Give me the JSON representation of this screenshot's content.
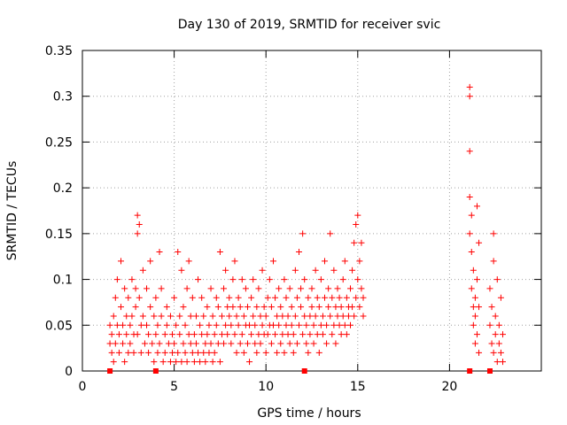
{
  "chart_data": {
    "type": "scatter",
    "title": "Day 130 of 2019, SRMTID for receiver svic",
    "xlabel": "GPS time / hours",
    "ylabel": "SRMTID / TECUs",
    "xlim": [
      0,
      25
    ],
    "ylim": [
      0,
      0.35
    ],
    "xticks": [
      0,
      5,
      10,
      15,
      20
    ],
    "xtick_labels": [
      "0",
      "5",
      "10",
      "15",
      "20"
    ],
    "yticks": [
      0,
      0.05,
      0.1,
      0.15,
      0.2,
      0.25,
      0.3,
      0.35
    ],
    "ytick_labels": [
      "0",
      "0.05",
      "0.1",
      "0.15",
      "0.2",
      "0.25",
      "0.3",
      "0.35"
    ],
    "grid": true,
    "marker": "plus",
    "color": "#ff0000",
    "series": [
      {
        "name": "SRMTID",
        "points": [
          [
            1.5,
            0.03
          ],
          [
            1.5,
            0.05
          ],
          [
            1.6,
            0.02
          ],
          [
            1.6,
            0.04
          ],
          [
            1.7,
            0.06
          ],
          [
            1.7,
            0.01
          ],
          [
            1.8,
            0.08
          ],
          [
            1.8,
            0.03
          ],
          [
            1.9,
            0.05
          ],
          [
            1.9,
            0.1
          ],
          [
            2.0,
            0.04
          ],
          [
            2.0,
            0.02
          ],
          [
            2.1,
            0.07
          ],
          [
            2.1,
            0.12
          ],
          [
            2.2,
            0.03
          ],
          [
            2.2,
            0.05
          ],
          [
            2.3,
            0.09
          ],
          [
            2.3,
            0.01
          ],
          [
            2.4,
            0.06
          ],
          [
            2.4,
            0.04
          ],
          [
            2.5,
            0.02
          ],
          [
            2.5,
            0.08
          ],
          [
            2.6,
            0.05
          ],
          [
            2.6,
            0.03
          ],
          [
            2.7,
            0.1
          ],
          [
            2.7,
            0.06
          ],
          [
            2.8,
            0.04
          ],
          [
            2.8,
            0.02
          ],
          [
            2.9,
            0.07
          ],
          [
            2.9,
            0.09
          ],
          [
            3.0,
            0.17
          ],
          [
            3.0,
            0.15
          ],
          [
            3.0,
            0.04
          ],
          [
            3.1,
            0.16
          ],
          [
            3.1,
            0.08
          ],
          [
            3.2,
            0.05
          ],
          [
            3.2,
            0.02
          ],
          [
            3.3,
            0.06
          ],
          [
            3.3,
            0.11
          ],
          [
            3.4,
            0.03
          ],
          [
            3.5,
            0.05
          ],
          [
            3.5,
            0.09
          ],
          [
            3.6,
            0.02
          ],
          [
            3.6,
            0.04
          ],
          [
            3.7,
            0.07
          ],
          [
            3.7,
            0.12
          ],
          [
            3.8,
            0.03
          ],
          [
            3.9,
            0.06
          ],
          [
            3.9,
            0.01
          ],
          [
            4.0,
            0.04
          ],
          [
            4.0,
            0.08
          ],
          [
            4.1,
            0.02
          ],
          [
            4.1,
            0.05
          ],
          [
            4.2,
            0.13
          ],
          [
            4.2,
            0.03
          ],
          [
            4.3,
            0.06
          ],
          [
            4.3,
            0.09
          ],
          [
            4.4,
            0.01
          ],
          [
            4.5,
            0.04
          ],
          [
            4.5,
            0.02
          ],
          [
            4.6,
            0.07
          ],
          [
            4.6,
            0.05
          ],
          [
            4.7,
            0.03
          ],
          [
            4.8,
            0.06
          ],
          [
            4.8,
            0.01
          ],
          [
            4.9,
            0.02
          ],
          [
            4.9,
            0.04
          ],
          [
            5.0,
            0.03
          ],
          [
            5.0,
            0.08
          ],
          [
            5.1,
            0.01
          ],
          [
            5.1,
            0.05
          ],
          [
            5.2,
            0.13
          ],
          [
            5.2,
            0.02
          ],
          [
            5.3,
            0.06
          ],
          [
            5.3,
            0.04
          ],
          [
            5.4,
            0.11
          ],
          [
            5.4,
            0.01
          ],
          [
            5.5,
            0.03
          ],
          [
            5.5,
            0.07
          ],
          [
            5.6,
            0.02
          ],
          [
            5.6,
            0.05
          ],
          [
            5.7,
            0.09
          ],
          [
            5.7,
            0.01
          ],
          [
            5.8,
            0.04
          ],
          [
            5.8,
            0.12
          ],
          [
            5.9,
            0.03
          ],
          [
            5.9,
            0.06
          ],
          [
            6.0,
            0.02
          ],
          [
            6.0,
            0.08
          ],
          [
            6.1,
            0.01
          ],
          [
            6.1,
            0.04
          ],
          [
            6.2,
            0.06
          ],
          [
            6.2,
            0.03
          ],
          [
            6.3,
            0.1
          ],
          [
            6.3,
            0.02
          ],
          [
            6.4,
            0.05
          ],
          [
            6.4,
            0.01
          ],
          [
            6.5,
            0.04
          ],
          [
            6.5,
            0.08
          ],
          [
            6.6,
            0.02
          ],
          [
            6.6,
            0.06
          ],
          [
            6.7,
            0.03
          ],
          [
            6.7,
            0.01
          ],
          [
            6.8,
            0.07
          ],
          [
            6.8,
            0.04
          ],
          [
            6.9,
            0.02
          ],
          [
            6.9,
            0.05
          ],
          [
            7.0,
            0.09
          ],
          [
            7.0,
            0.03
          ],
          [
            7.1,
            0.01
          ],
          [
            7.1,
            0.06
          ],
          [
            7.2,
            0.04
          ],
          [
            7.2,
            0.02
          ],
          [
            7.3,
            0.08
          ],
          [
            7.3,
            0.05
          ],
          [
            7.4,
            0.03
          ],
          [
            7.4,
            0.07
          ],
          [
            7.5,
            0.01
          ],
          [
            7.5,
            0.13
          ],
          [
            7.6,
            0.04
          ],
          [
            7.6,
            0.06
          ],
          [
            7.7,
            0.09
          ],
          [
            7.7,
            0.03
          ],
          [
            7.8,
            0.05
          ],
          [
            7.8,
            0.11
          ],
          [
            7.9,
            0.07
          ],
          [
            7.9,
            0.04
          ],
          [
            8.0,
            0.06
          ],
          [
            8.0,
            0.08
          ],
          [
            8.1,
            0.03
          ],
          [
            8.1,
            0.05
          ],
          [
            8.2,
            0.1
          ],
          [
            8.2,
            0.07
          ],
          [
            8.3,
            0.04
          ],
          [
            8.3,
            0.12
          ],
          [
            8.4,
            0.06
          ],
          [
            8.4,
            0.02
          ],
          [
            8.5,
            0.05
          ],
          [
            8.5,
            0.08
          ],
          [
            8.6,
            0.03
          ],
          [
            8.6,
            0.07
          ],
          [
            8.7,
            0.04
          ],
          [
            8.7,
            0.1
          ],
          [
            8.8,
            0.06
          ],
          [
            8.8,
            0.02
          ],
          [
            8.9,
            0.05
          ],
          [
            8.9,
            0.09
          ],
          [
            9.0,
            0.03
          ],
          [
            9.0,
            0.07
          ],
          [
            9.1,
            0.05
          ],
          [
            9.1,
            0.01
          ],
          [
            9.2,
            0.08
          ],
          [
            9.2,
            0.04
          ],
          [
            9.3,
            0.06
          ],
          [
            9.3,
            0.1
          ],
          [
            9.4,
            0.03
          ],
          [
            9.4,
            0.05
          ],
          [
            9.5,
            0.07
          ],
          [
            9.5,
            0.02
          ],
          [
            9.6,
            0.04
          ],
          [
            9.6,
            0.09
          ],
          [
            9.7,
            0.06
          ],
          [
            9.7,
            0.03
          ],
          [
            9.8,
            0.05
          ],
          [
            9.8,
            0.11
          ],
          [
            9.9,
            0.04
          ],
          [
            9.9,
            0.07
          ],
          [
            10.0,
            0.02
          ],
          [
            10.0,
            0.06
          ],
          [
            10.1,
            0.08
          ],
          [
            10.1,
            0.04
          ],
          [
            10.2,
            0.05
          ],
          [
            10.2,
            0.1
          ],
          [
            10.3,
            0.03
          ],
          [
            10.3,
            0.07
          ],
          [
            10.4,
            0.12
          ],
          [
            10.4,
            0.05
          ],
          [
            10.5,
            0.04
          ],
          [
            10.5,
            0.08
          ],
          [
            10.6,
            0.06
          ],
          [
            10.6,
            0.02
          ],
          [
            10.7,
            0.05
          ],
          [
            10.7,
            0.09
          ],
          [
            10.8,
            0.03
          ],
          [
            10.8,
            0.07
          ],
          [
            10.9,
            0.04
          ],
          [
            10.9,
            0.06
          ],
          [
            11.0,
            0.1
          ],
          [
            11.0,
            0.02
          ],
          [
            11.1,
            0.05
          ],
          [
            11.1,
            0.08
          ],
          [
            11.2,
            0.04
          ],
          [
            11.2,
            0.06
          ],
          [
            11.3,
            0.03
          ],
          [
            11.3,
            0.09
          ],
          [
            11.4,
            0.05
          ],
          [
            11.4,
            0.07
          ],
          [
            11.5,
            0.02
          ],
          [
            11.5,
            0.04
          ],
          [
            11.6,
            0.06
          ],
          [
            11.6,
            0.11
          ],
          [
            11.7,
            0.08
          ],
          [
            11.7,
            0.03
          ],
          [
            11.8,
            0.13
          ],
          [
            11.8,
            0.05
          ],
          [
            11.9,
            0.09
          ],
          [
            11.9,
            0.07
          ],
          [
            12.0,
            0.15
          ],
          [
            12.0,
            0.04
          ],
          [
            12.1,
            0.06
          ],
          [
            12.1,
            0.1
          ],
          [
            12.2,
            0.03
          ],
          [
            12.2,
            0.05
          ],
          [
            12.3,
            0.08
          ],
          [
            12.3,
            0.02
          ],
          [
            12.4,
            0.06
          ],
          [
            12.4,
            0.04
          ],
          [
            12.5,
            0.07
          ],
          [
            12.5,
            0.09
          ],
          [
            12.6,
            0.05
          ],
          [
            12.6,
            0.03
          ],
          [
            12.7,
            0.11
          ],
          [
            12.7,
            0.06
          ],
          [
            12.8,
            0.04
          ],
          [
            12.8,
            0.08
          ],
          [
            12.9,
            0.07
          ],
          [
            12.9,
            0.02
          ],
          [
            13.0,
            0.05
          ],
          [
            13.0,
            0.1
          ],
          [
            13.1,
            0.06
          ],
          [
            13.1,
            0.04
          ],
          [
            13.2,
            0.08
          ],
          [
            13.2,
            0.12
          ],
          [
            13.3,
            0.05
          ],
          [
            13.3,
            0.03
          ],
          [
            13.4,
            0.07
          ],
          [
            13.4,
            0.09
          ],
          [
            13.5,
            0.06
          ],
          [
            13.5,
            0.15
          ],
          [
            13.6,
            0.04
          ],
          [
            13.6,
            0.08
          ],
          [
            13.7,
            0.05
          ],
          [
            13.7,
            0.11
          ],
          [
            13.8,
            0.07
          ],
          [
            13.8,
            0.03
          ],
          [
            13.9,
            0.06
          ],
          [
            13.9,
            0.09
          ],
          [
            14.0,
            0.05
          ],
          [
            14.0,
            0.08
          ],
          [
            14.1,
            0.04
          ],
          [
            14.1,
            0.07
          ],
          [
            14.2,
            0.1
          ],
          [
            14.2,
            0.06
          ],
          [
            14.3,
            0.05
          ],
          [
            14.3,
            0.12
          ],
          [
            14.4,
            0.08
          ],
          [
            14.4,
            0.04
          ],
          [
            14.5,
            0.07
          ],
          [
            14.5,
            0.06
          ],
          [
            14.6,
            0.09
          ],
          [
            14.6,
            0.05
          ],
          [
            14.7,
            0.11
          ],
          [
            14.7,
            0.07
          ],
          [
            14.8,
            0.14
          ],
          [
            14.8,
            0.06
          ],
          [
            14.9,
            0.08
          ],
          [
            14.9,
            0.16
          ],
          [
            15.0,
            0.17
          ],
          [
            15.0,
            0.1
          ],
          [
            15.1,
            0.07
          ],
          [
            15.1,
            0.12
          ],
          [
            15.2,
            0.09
          ],
          [
            15.2,
            0.14
          ],
          [
            15.3,
            0.06
          ],
          [
            15.3,
            0.08
          ],
          [
            21.1,
            0.31
          ],
          [
            21.1,
            0.3
          ],
          [
            21.1,
            0.24
          ],
          [
            21.1,
            0.19
          ],
          [
            21.1,
            0.15
          ],
          [
            21.2,
            0.17
          ],
          [
            21.2,
            0.13
          ],
          [
            21.2,
            0.09
          ],
          [
            21.3,
            0.11
          ],
          [
            21.3,
            0.07
          ],
          [
            21.3,
            0.05
          ],
          [
            21.4,
            0.08
          ],
          [
            21.4,
            0.03
          ],
          [
            21.4,
            0.06
          ],
          [
            21.5,
            0.1
          ],
          [
            21.5,
            0.04
          ],
          [
            21.5,
            0.18
          ],
          [
            21.6,
            0.14
          ],
          [
            21.6,
            0.02
          ],
          [
            21.6,
            0.07
          ],
          [
            22.2,
            0.09
          ],
          [
            22.2,
            0.05
          ],
          [
            22.3,
            0.03
          ],
          [
            22.3,
            0.07
          ],
          [
            22.4,
            0.15
          ],
          [
            22.4,
            0.12
          ],
          [
            22.4,
            0.02
          ],
          [
            22.5,
            0.06
          ],
          [
            22.5,
            0.04
          ],
          [
            22.6,
            0.1
          ],
          [
            22.6,
            0.01
          ],
          [
            22.7,
            0.05
          ],
          [
            22.7,
            0.03
          ],
          [
            22.8,
            0.08
          ],
          [
            22.8,
            0.02
          ],
          [
            22.9,
            0.04
          ],
          [
            22.9,
            0.01
          ]
        ]
      },
      {
        "name": "gap-markers",
        "points": [
          [
            1.5,
            0
          ],
          [
            4.0,
            0
          ],
          [
            12.1,
            0
          ],
          [
            21.1,
            0
          ],
          [
            22.2,
            0
          ]
        ]
      }
    ]
  }
}
